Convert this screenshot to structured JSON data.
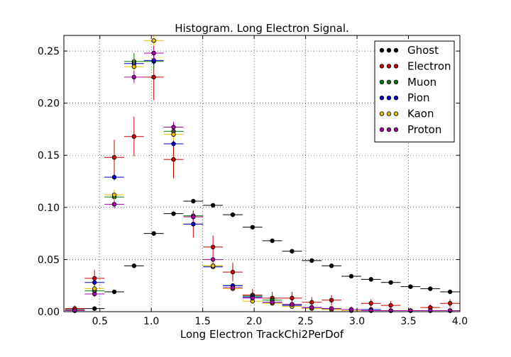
{
  "chart_data": {
    "type": "scatter",
    "title": "Histogram. Long Electron Signal.",
    "xlabel": "Long Electron TrackChi2PerDof",
    "ylabel": "",
    "xlim": [
      0.15,
      4.0
    ],
    "ylim": [
      0.0,
      0.265
    ],
    "xticks": [
      0.5,
      1.0,
      1.5,
      2.0,
      2.5,
      3.0,
      3.5,
      4.0
    ],
    "xtick_labels": [
      "0.5",
      "1.0",
      "1.5",
      "2.0",
      "2.5",
      "3.0",
      "3.5",
      "4.0"
    ],
    "yticks": [
      0.0,
      0.05,
      0.1,
      0.15,
      0.2,
      0.25
    ],
    "ytick_labels": [
      "0.00",
      "0.05",
      "0.10",
      "0.15",
      "0.20",
      "0.25"
    ],
    "grid": true,
    "legend_position": "top-right",
    "bin_half_width": 0.096,
    "bins": [
      0.256,
      0.448,
      0.64,
      0.832,
      1.024,
      1.216,
      1.408,
      1.6,
      1.792,
      1.984,
      2.176,
      2.368,
      2.56,
      2.752,
      2.944,
      3.136,
      3.328,
      3.52,
      3.712,
      3.904
    ],
    "series": [
      {
        "name": "Ghost",
        "color": "#000000",
        "values": [
          0.002,
          0.003,
          0.019,
          0.044,
          0.075,
          0.094,
          0.106,
          0.102,
          0.093,
          0.081,
          0.068,
          0.058,
          0.049,
          0.044,
          0.034,
          0.031,
          0.028,
          0.024,
          0.022,
          0.019
        ],
        "errors": [
          0.001,
          0.001,
          0.001,
          0.0015,
          0.002,
          0.002,
          0.002,
          0.002,
          0.002,
          0.002,
          0.0015,
          0.0015,
          0.0015,
          0.0015,
          0.0015,
          0.001,
          0.001,
          0.001,
          0.001,
          0.001
        ]
      },
      {
        "name": "Electron",
        "color": "#cc0000",
        "values": [
          0.003,
          0.032,
          0.148,
          0.168,
          0.225,
          0.146,
          0.084,
          0.062,
          0.038,
          0.016,
          0.013,
          0.013,
          0.009,
          0.011,
          0.002,
          0.008,
          0.006,
          0.001,
          0.004,
          0.008
        ],
        "errors": [
          0.003,
          0.008,
          0.017,
          0.019,
          0.022,
          0.018,
          0.013,
          0.011,
          0.009,
          0.006,
          0.006,
          0.006,
          0.005,
          0.005,
          0.003,
          0.004,
          0.004,
          0.002,
          0.003,
          0.004
        ]
      },
      {
        "name": "Muon",
        "color": "#008000",
        "values": [
          0.001,
          0.02,
          0.11,
          0.24,
          0.24,
          0.173,
          0.092,
          0.044,
          0.025,
          0.015,
          0.011,
          0.007,
          0.004,
          0.003,
          0.002,
          0.002,
          0.001,
          0.001,
          0.001,
          0.001
        ],
        "errors": [
          0.001,
          0.003,
          0.005,
          0.008,
          0.008,
          0.006,
          0.005,
          0.003,
          0.002,
          0.002,
          0.002,
          0.001,
          0.001,
          0.001,
          0.001,
          0.001,
          0.001,
          0.001,
          0.001,
          0.001
        ]
      },
      {
        "name": "Pion",
        "color": "#0000cc",
        "values": [
          0.001,
          0.028,
          0.129,
          0.238,
          0.241,
          0.161,
          0.084,
          0.043,
          0.025,
          0.014,
          0.009,
          0.006,
          0.004,
          0.003,
          0.002,
          0.002,
          0.001,
          0.001,
          0.001,
          0.001
        ],
        "errors": [
          0.001,
          0.002,
          0.003,
          0.004,
          0.004,
          0.003,
          0.002,
          0.002,
          0.001,
          0.001,
          0.001,
          0.001,
          0.001,
          0.001,
          0.001,
          0.001,
          0.001,
          0.001,
          0.001,
          0.001
        ]
      },
      {
        "name": "Kaon",
        "color": "#e6c000",
        "values": [
          0.001,
          0.022,
          0.112,
          0.235,
          0.26,
          0.17,
          0.091,
          0.044,
          0.022,
          0.01,
          0.008,
          0.005,
          0.003,
          0.002,
          0.001,
          0.001,
          0.001,
          0.001,
          0.001,
          0.001
        ],
        "errors": [
          0.001,
          0.003,
          0.005,
          0.007,
          0.008,
          0.006,
          0.004,
          0.003,
          0.002,
          0.002,
          0.001,
          0.001,
          0.001,
          0.001,
          0.001,
          0.001,
          0.001,
          0.001,
          0.001,
          0.001
        ]
      },
      {
        "name": "Proton",
        "color": "#aa00aa",
        "values": [
          0.001,
          0.017,
          0.103,
          0.225,
          0.248,
          0.177,
          0.091,
          0.05,
          0.023,
          0.013,
          0.009,
          0.007,
          0.004,
          0.003,
          0.002,
          0.001,
          0.001,
          0.001,
          0.001,
          0.001
        ],
        "errors": [
          0.001,
          0.003,
          0.004,
          0.006,
          0.007,
          0.005,
          0.004,
          0.003,
          0.002,
          0.002,
          0.001,
          0.001,
          0.001,
          0.001,
          0.001,
          0.001,
          0.001,
          0.001,
          0.001,
          0.001
        ]
      }
    ]
  }
}
